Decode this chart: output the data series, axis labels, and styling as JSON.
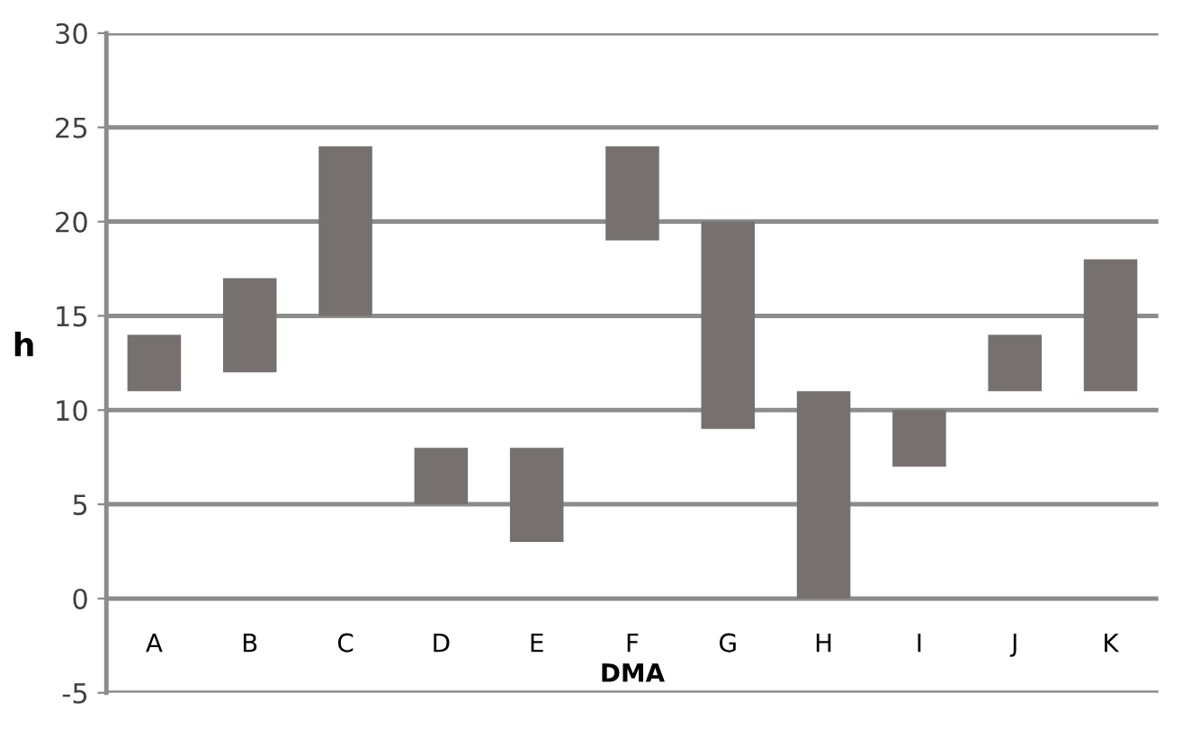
{
  "chart_data": {
    "type": "bar",
    "xlabel": "DMA",
    "ylabel": "h",
    "categories": [
      "A",
      "B",
      "C",
      "D",
      "E",
      "F",
      "G",
      "H",
      "I",
      "J",
      "K"
    ],
    "base": [
      11,
      12,
      15,
      5,
      3,
      19,
      9,
      0,
      7,
      11,
      11
    ],
    "values": [
      3,
      5,
      9,
      3,
      5,
      5,
      11,
      11,
      3,
      3,
      7
    ],
    "color": "#767170",
    "ylim": [
      -5,
      30
    ],
    "yticks": [
      -5,
      0,
      5,
      10,
      15,
      20,
      25,
      30
    ],
    "grid": "y"
  }
}
